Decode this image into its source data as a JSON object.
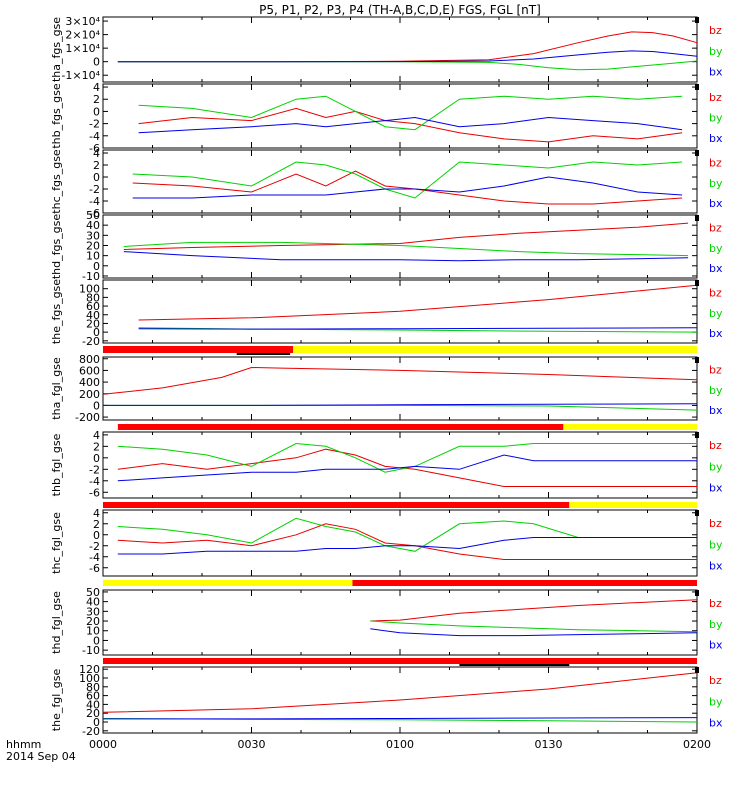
{
  "title": "P5, P1, P2, P3, P4 (TH-A,B,C,D,E) FGS, FGL [nT]",
  "colors": {
    "bz": "#e60000",
    "by": "#00d200",
    "bx": "#0000e6",
    "bar_red": "#ff0000",
    "bar_yellow": "#ffff00",
    "bar_black": "#000000",
    "axis": "#000000"
  },
  "legend_labels": {
    "bz": "bz",
    "by": "by",
    "bx": "bx"
  },
  "xaxis": {
    "tick_labels": [
      "0000",
      "0030",
      "0100",
      "0130",
      "0200"
    ],
    "unit_label": "hhmm",
    "date_label": "2014 Sep 04"
  },
  "chart_data": {
    "type": "line",
    "x_unit": "hours since 2014 Sep 04 00:00 UT",
    "xlim": [
      0,
      2
    ],
    "panels": [
      {
        "ylabel": "tha_fgs_gse",
        "yticks": [
          -10000,
          0,
          10000,
          20000,
          30000
        ],
        "ytick_labels": [
          "-1×10⁴",
          "0",
          "1×10⁴",
          "2×10⁴",
          "3×10⁴"
        ],
        "ylim": [
          -15000,
          33000
        ],
        "series": [
          {
            "name": "bz",
            "x": [
              0.05,
              0.6,
              1.0,
              1.3,
              1.45,
              1.6,
              1.7,
              1.78,
              1.85,
              1.92,
              2.0
            ],
            "y": [
              0,
              0,
              300,
              1500,
              6000,
              14000,
              19000,
              22000,
              21500,
              19000,
              14000
            ]
          },
          {
            "name": "by",
            "x": [
              0.05,
              0.6,
              1.0,
              1.3,
              1.4,
              1.5,
              1.6,
              1.7,
              1.8,
              1.9,
              2.0
            ],
            "y": [
              0,
              0,
              0,
              -500,
              -2000,
              -4500,
              -6000,
              -5500,
              -3500,
              -1500,
              500
            ]
          },
          {
            "name": "bx",
            "x": [
              0.05,
              0.6,
              1.0,
              1.3,
              1.45,
              1.6,
              1.7,
              1.78,
              1.85,
              1.92,
              2.0
            ],
            "y": [
              0,
              0,
              100,
              500,
              2000,
              5000,
              7000,
              8000,
              7500,
              6000,
              4000
            ]
          }
        ]
      },
      {
        "ylabel": "thb_fgs_gse",
        "yticks": [
          -6,
          -4,
          -2,
          0,
          2,
          4
        ],
        "ylim": [
          -6,
          4.5
        ],
        "series": [
          {
            "name": "bz",
            "x": [
              0.12,
              0.3,
              0.5,
              0.65,
              0.75,
              0.85,
              0.95,
              1.05,
              1.2,
              1.35,
              1.5,
              1.65,
              1.8,
              1.95
            ],
            "y": [
              -2.0,
              -1.0,
              -1.5,
              0.5,
              -1.0,
              0.0,
              -1.5,
              -2.0,
              -3.5,
              -4.5,
              -5.0,
              -4.0,
              -4.5,
              -3.5
            ]
          },
          {
            "name": "by",
            "x": [
              0.12,
              0.3,
              0.5,
              0.65,
              0.75,
              0.85,
              0.95,
              1.05,
              1.2,
              1.35,
              1.5,
              1.65,
              1.8,
              1.95
            ],
            "y": [
              1.0,
              0.5,
              -1.0,
              2.0,
              2.5,
              0.0,
              -2.5,
              -3.0,
              2.0,
              2.5,
              2.0,
              2.5,
              2.0,
              2.5
            ]
          },
          {
            "name": "bx",
            "x": [
              0.12,
              0.3,
              0.5,
              0.65,
              0.75,
              0.85,
              0.95,
              1.05,
              1.2,
              1.35,
              1.5,
              1.65,
              1.8,
              1.95
            ],
            "y": [
              -3.5,
              -3.0,
              -2.5,
              -2.0,
              -2.5,
              -2.0,
              -1.5,
              -1.0,
              -2.5,
              -2.0,
              -1.0,
              -1.5,
              -2.0,
              -3.0
            ]
          }
        ]
      },
      {
        "ylabel": "thc_fgs_gse",
        "yticks": [
          -6,
          -4,
          -2,
          0,
          2,
          4
        ],
        "ylim": [
          -6,
          4.5
        ],
        "series": [
          {
            "name": "bz",
            "x": [
              0.1,
              0.3,
              0.5,
              0.65,
              0.75,
              0.85,
              0.95,
              1.05,
              1.2,
              1.35,
              1.5,
              1.65,
              1.8,
              1.95
            ],
            "y": [
              -1.0,
              -1.5,
              -2.5,
              0.5,
              -1.5,
              1.0,
              -1.5,
              -2.0,
              -3.0,
              -4.0,
              -4.5,
              -4.5,
              -4.0,
              -3.5
            ]
          },
          {
            "name": "by",
            "x": [
              0.1,
              0.3,
              0.5,
              0.65,
              0.75,
              0.85,
              0.95,
              1.05,
              1.2,
              1.35,
              1.5,
              1.65,
              1.8,
              1.95
            ],
            "y": [
              0.5,
              0.0,
              -1.5,
              2.5,
              2.0,
              0.5,
              -2.0,
              -3.5,
              2.5,
              2.0,
              1.5,
              2.5,
              2.0,
              2.5
            ]
          },
          {
            "name": "bx",
            "x": [
              0.1,
              0.3,
              0.5,
              0.65,
              0.75,
              0.85,
              0.95,
              1.05,
              1.2,
              1.35,
              1.5,
              1.65,
              1.8,
              1.95
            ],
            "y": [
              -3.5,
              -3.5,
              -3.0,
              -3.0,
              -3.0,
              -2.5,
              -2.0,
              -2.0,
              -2.5,
              -1.5,
              0.0,
              -1.0,
              -2.5,
              -3.0
            ]
          }
        ]
      },
      {
        "ylabel": "thd_fgs_gse",
        "yticks": [
          -10,
          0,
          10,
          20,
          30,
          40,
          50
        ],
        "ylim": [
          -12,
          50
        ],
        "series": [
          {
            "name": "bz",
            "x": [
              0.07,
              0.3,
              0.6,
              1.0,
              1.2,
              1.4,
              1.6,
              1.8,
              1.97
            ],
            "y": [
              16,
              18,
              20,
              22,
              28,
              32,
              35,
              38,
              42
            ]
          },
          {
            "name": "by",
            "x": [
              0.07,
              0.3,
              0.6,
              1.0,
              1.2,
              1.4,
              1.6,
              1.8,
              1.97
            ],
            "y": [
              19,
              23,
              23,
              20,
              17,
              14,
              12,
              11,
              10
            ]
          },
          {
            "name": "bx",
            "x": [
              0.07,
              0.3,
              0.6,
              1.0,
              1.2,
              1.4,
              1.6,
              1.8,
              1.97
            ],
            "y": [
              14,
              10,
              6,
              6,
              5,
              6,
              6,
              7,
              8
            ]
          }
        ]
      },
      {
        "ylabel": "the_fgs_gse",
        "yticks": [
          -20,
          0,
          20,
          40,
          60,
          80,
          100
        ],
        "ylim": [
          -25,
          120
        ],
        "series": [
          {
            "name": "bz",
            "x": [
              0.12,
              0.5,
              1.0,
              1.5,
              2.0
            ],
            "y": [
              28,
              33,
              48,
              75,
              108
            ]
          },
          {
            "name": "by",
            "x": [
              0.12,
              0.5,
              1.0,
              1.5,
              2.0
            ],
            "y": [
              10,
              7,
              5,
              2,
              0
            ]
          },
          {
            "name": "bx",
            "x": [
              0.12,
              0.5,
              1.0,
              1.5,
              2.0
            ],
            "y": [
              8,
              7,
              8,
              9,
              10
            ]
          }
        ]
      },
      {
        "ylabel": "tha_fgl_gse",
        "yticks": [
          -200,
          0,
          200,
          400,
          600,
          800
        ],
        "ylim": [
          -250,
          830
        ],
        "series": [
          {
            "name": "bz",
            "x": [
              0.0,
              0.2,
              0.4,
              0.5,
              0.6,
              1.0,
              1.5,
              2.0
            ],
            "y": [
              190,
              300,
              480,
              650,
              640,
              600,
              530,
              440
            ]
          },
          {
            "name": "by",
            "x": [
              0.0,
              0.5,
              1.0,
              1.5,
              2.0
            ],
            "y": [
              0,
              0,
              0,
              -10,
              -80
            ]
          },
          {
            "name": "bx",
            "x": [
              0.0,
              0.5,
              1.0,
              1.5,
              2.0
            ],
            "y": [
              0,
              0,
              10,
              20,
              30
            ]
          }
        ]
      },
      {
        "ylabel": "thb_fgl_gse",
        "yticks": [
          -6,
          -4,
          -2,
          0,
          2,
          4
        ],
        "ylim": [
          -7,
          4.5
        ],
        "series": [
          {
            "name": "bz",
            "x": [
              0.05,
              0.2,
              0.35,
              0.5,
              0.65,
              0.75,
              0.85,
              0.95,
              1.05,
              1.2,
              1.35,
              1.45,
              1.6,
              1.8,
              2.0
            ],
            "y": [
              -2.0,
              -1.0,
              -2.0,
              -1.0,
              0.0,
              1.5,
              0.5,
              -1.5,
              -2.0,
              -3.5,
              -5.0,
              -5.0,
              -5.0,
              -5.0,
              -5.0
            ]
          },
          {
            "name": "by",
            "x": [
              0.05,
              0.2,
              0.35,
              0.5,
              0.65,
              0.75,
              0.85,
              0.95,
              1.05,
              1.2,
              1.35,
              1.45,
              1.6,
              1.8,
              2.0
            ],
            "y": [
              2.0,
              1.5,
              0.5,
              -1.5,
              2.5,
              2.0,
              0.0,
              -2.5,
              -1.5,
              2.0,
              2.0,
              2.5,
              2.5,
              2.5,
              2.5
            ]
          },
          {
            "name": "bx",
            "x": [
              0.05,
              0.2,
              0.35,
              0.5,
              0.65,
              0.75,
              0.85,
              0.95,
              1.05,
              1.2,
              1.35,
              1.45,
              1.6,
              1.8,
              2.0
            ],
            "y": [
              -4.0,
              -3.5,
              -3.0,
              -2.5,
              -2.5,
              -2.0,
              -2.0,
              -2.0,
              -1.5,
              -2.0,
              0.5,
              -0.5,
              -0.5,
              -0.5,
              -0.5
            ]
          }
        ]
      },
      {
        "ylabel": "thc_fgl_gse",
        "yticks": [
          -6,
          -4,
          -2,
          0,
          2,
          4
        ],
        "ylim": [
          -7.5,
          4.5
        ],
        "series": [
          {
            "name": "bz",
            "x": [
              0.05,
              0.2,
              0.35,
              0.5,
              0.65,
              0.75,
              0.85,
              0.95,
              1.05,
              1.2,
              1.35,
              1.45,
              1.6,
              1.8,
              2.0
            ],
            "y": [
              -1.0,
              -1.5,
              -1.0,
              -2.0,
              0.0,
              2.0,
              1.0,
              -1.5,
              -2.0,
              -3.5,
              -4.5,
              -4.5,
              -4.5,
              -4.5,
              -4.5
            ]
          },
          {
            "name": "by",
            "x": [
              0.05,
              0.2,
              0.35,
              0.5,
              0.65,
              0.75,
              0.85,
              0.95,
              1.05,
              1.2,
              1.35,
              1.45,
              1.6,
              1.8,
              2.0
            ],
            "y": [
              1.5,
              1.0,
              0.0,
              -1.5,
              3.0,
              1.5,
              0.5,
              -2.0,
              -3.0,
              2.0,
              2.5,
              2.0,
              -0.5,
              -0.5,
              -0.5
            ]
          },
          {
            "name": "bx",
            "x": [
              0.05,
              0.2,
              0.35,
              0.5,
              0.65,
              0.75,
              0.85,
              0.95,
              1.05,
              1.2,
              1.35,
              1.45,
              1.6,
              1.8,
              2.0
            ],
            "y": [
              -3.5,
              -3.5,
              -3.0,
              -3.0,
              -3.0,
              -2.5,
              -2.5,
              -2.0,
              -2.0,
              -2.5,
              -1.0,
              -0.5,
              -0.5,
              -0.5,
              -0.5
            ]
          }
        ]
      },
      {
        "ylabel": "thd_fgl_gse",
        "yticks": [
          -10,
          0,
          10,
          20,
          30,
          40,
          50
        ],
        "ylim": [
          -15,
          52
        ],
        "series": [
          {
            "name": "bz",
            "x": [
              0.9,
              1.0,
              1.2,
              1.4,
              1.6,
              1.8,
              2.0
            ],
            "y": [
              20,
              21,
              28,
              32,
              36,
              39,
              42
            ]
          },
          {
            "name": "by",
            "x": [
              0.9,
              1.0,
              1.2,
              1.4,
              1.6,
              1.8,
              2.0
            ],
            "y": [
              20,
              18,
              15,
              13,
              11,
              10,
              9
            ]
          },
          {
            "name": "bx",
            "x": [
              0.9,
              1.0,
              1.2,
              1.4,
              1.6,
              1.8,
              2.0
            ],
            "y": [
              12,
              8,
              5,
              5,
              6,
              7,
              8
            ]
          }
        ]
      },
      {
        "ylabel": "the_fgl_gse",
        "yticks": [
          -20,
          0,
          20,
          40,
          60,
          80,
          100,
          120
        ],
        "ylim": [
          -25,
          125
        ],
        "series": [
          {
            "name": "bz",
            "x": [
              0.0,
              0.5,
              1.0,
              1.5,
              2.0
            ],
            "y": [
              22,
              30,
              50,
              75,
              112
            ]
          },
          {
            "name": "by",
            "x": [
              0.0,
              0.5,
              1.0,
              1.5,
              2.0
            ],
            "y": [
              8,
              6,
              5,
              3,
              0
            ]
          },
          {
            "name": "bx",
            "x": [
              0.0,
              0.5,
              1.0,
              1.5,
              2.0
            ],
            "y": [
              7,
              7,
              8,
              9,
              10
            ]
          }
        ]
      }
    ],
    "mode_bars": [
      {
        "segments": [
          {
            "x0": 0.0,
            "x1": 0.64,
            "color": "red"
          },
          {
            "x0": 0.64,
            "x1": 2.0,
            "color": "yellow"
          }
        ],
        "black_segments": [
          {
            "x0": 0.45,
            "x1": 0.63
          }
        ]
      },
      {
        "segments": [
          {
            "x0": 0.05,
            "x1": 1.55,
            "color": "red"
          },
          {
            "x0": 1.55,
            "x1": 2.0,
            "color": "yellow"
          }
        ],
        "black_segments": []
      },
      {
        "segments": [
          {
            "x0": 0.0,
            "x1": 1.57,
            "color": "red"
          },
          {
            "x0": 1.57,
            "x1": 2.0,
            "color": "yellow"
          }
        ],
        "black_segments": []
      },
      {
        "segments": [
          {
            "x0": 0.0,
            "x1": 0.84,
            "color": "yellow"
          },
          {
            "x0": 0.84,
            "x1": 2.0,
            "color": "red"
          }
        ],
        "black_segments": []
      },
      {
        "segments": [
          {
            "x0": 0.0,
            "x1": 2.0,
            "color": "red"
          }
        ],
        "black_segments": [
          {
            "x0": 1.2,
            "x1": 1.57
          }
        ]
      }
    ]
  }
}
